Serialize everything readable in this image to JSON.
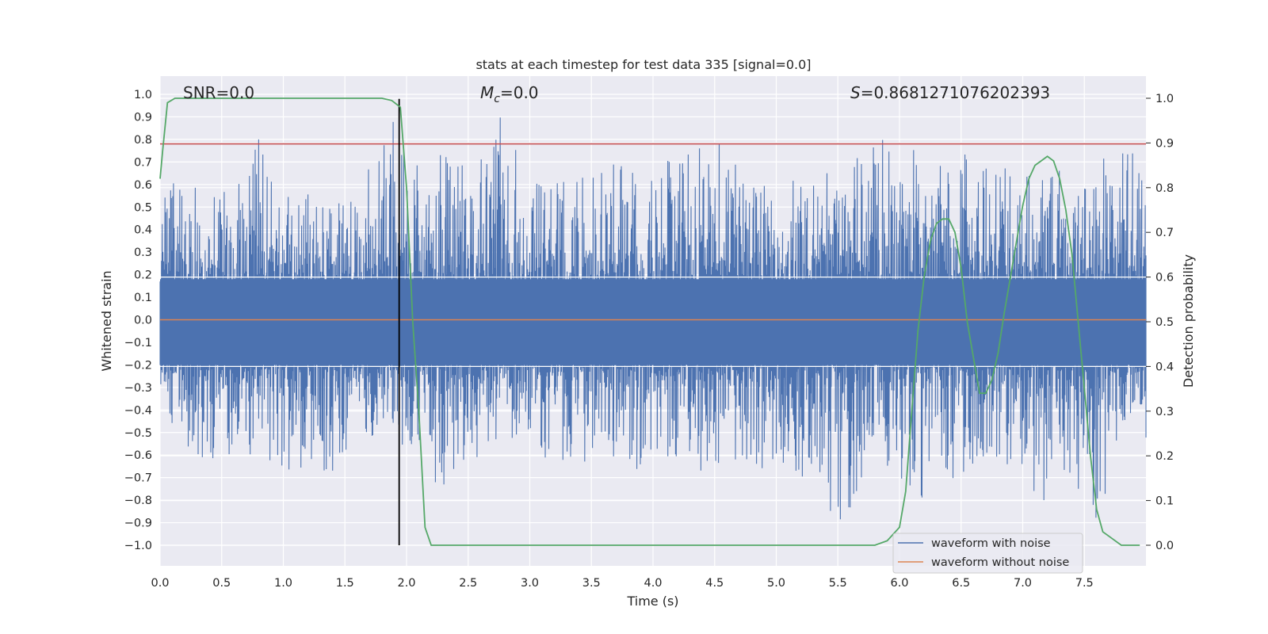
{
  "chart_data": {
    "type": "line",
    "title": "stats at each timestep for test data 335 [signal=0.0]",
    "xlabel": "Time (s)",
    "ylabel_left": "Whitened strain",
    "ylabel_right": "Detection probability",
    "xlim": [
      0.0,
      8.0
    ],
    "ylim_left": [
      -1.0,
      1.0
    ],
    "ylim_right": [
      0.0,
      1.0
    ],
    "x_ticks": [
      "0.0",
      "0.5",
      "1.0",
      "1.5",
      "2.0",
      "2.5",
      "3.0",
      "3.5",
      "4.0",
      "4.5",
      "5.0",
      "5.5",
      "6.0",
      "6.5",
      "7.0",
      "7.5"
    ],
    "y_left_ticks": [
      "1.0",
      "0.9",
      "0.8",
      "0.7",
      "0.6",
      "0.5",
      "0.4",
      "0.3",
      "0.2",
      "0.1",
      "0.0",
      "−0.1",
      "−0.2",
      "−0.3",
      "−0.4",
      "−0.5",
      "−0.6",
      "−0.7",
      "−0.8",
      "−0.9",
      "−1.0"
    ],
    "y_right_ticks": [
      "1.0",
      "0.9",
      "0.8",
      "0.7",
      "0.6",
      "0.5",
      "0.4",
      "0.3",
      "0.2",
      "0.1",
      "0.0"
    ],
    "grid": true,
    "legend_position": "bottom-right",
    "annotations": {
      "snr": "SNR=0.0",
      "mc_symbol": "M",
      "mc_sub": "c",
      "mc_value": "=0.0",
      "s_symbol": "S",
      "s_value": "=0.8681271076202393"
    },
    "threshold_left": 0.78,
    "vline_x": 1.94,
    "series": [
      {
        "name": "waveform with noise",
        "color": "#4c72b0",
        "axis": "left",
        "peaks": [
          [
            0.0,
            0.64,
            -0.42
          ],
          [
            0.2,
            0.58,
            -0.55
          ],
          [
            0.4,
            0.6,
            -0.65
          ],
          [
            0.6,
            0.55,
            -0.62
          ],
          [
            0.8,
            0.83,
            -0.6
          ],
          [
            1.0,
            0.58,
            -0.7
          ],
          [
            1.2,
            0.6,
            -0.64
          ],
          [
            1.3,
            0.55,
            -0.76
          ],
          [
            1.5,
            0.55,
            -0.58
          ],
          [
            1.7,
            0.7,
            -0.55
          ],
          [
            1.88,
            0.98,
            -0.45
          ],
          [
            2.0,
            0.72,
            -0.62
          ],
          [
            2.3,
            0.78,
            -0.75
          ],
          [
            2.5,
            0.66,
            -0.62
          ],
          [
            2.8,
            0.97,
            -0.6
          ],
          [
            3.0,
            0.6,
            -0.62
          ],
          [
            3.3,
            0.66,
            -0.64
          ],
          [
            3.6,
            0.7,
            -0.62
          ],
          [
            3.9,
            0.66,
            -0.68
          ],
          [
            4.1,
            0.7,
            -0.62
          ],
          [
            4.4,
            0.78,
            -0.68
          ],
          [
            4.6,
            0.78,
            -0.62
          ],
          [
            4.9,
            0.62,
            -0.66
          ],
          [
            5.2,
            0.66,
            -0.7
          ],
          [
            5.55,
            0.66,
            -0.93
          ],
          [
            5.8,
            0.82,
            -0.64
          ],
          [
            6.0,
            0.78,
            -0.7
          ],
          [
            6.25,
            0.72,
            -0.85
          ],
          [
            6.5,
            0.74,
            -0.68
          ],
          [
            6.8,
            0.68,
            -0.62
          ],
          [
            7.05,
            0.72,
            -0.75
          ],
          [
            7.2,
            0.68,
            -0.82
          ],
          [
            7.4,
            0.74,
            -0.7
          ],
          [
            7.6,
            0.8,
            -1.0
          ],
          [
            7.8,
            0.93,
            -0.62
          ],
          [
            7.95,
            0.64,
            -0.55
          ]
        ]
      },
      {
        "name": "waveform without noise",
        "color": "#dd8452",
        "axis": "left",
        "x": [
          0.0,
          8.0
        ],
        "y": [
          0.0,
          0.0
        ]
      },
      {
        "name": "detection probability",
        "color": "#55a868",
        "axis": "right",
        "x": [
          0.0,
          0.02,
          0.06,
          0.12,
          0.3,
          1.0,
          1.5,
          1.8,
          1.88,
          1.95,
          2.0,
          2.05,
          2.1,
          2.15,
          2.2,
          2.4,
          3.0,
          3.5,
          4.0,
          5.0,
          5.5,
          5.8,
          5.9,
          6.0,
          6.05,
          6.1,
          6.15,
          6.2,
          6.25,
          6.3,
          6.35,
          6.4,
          6.45,
          6.5,
          6.55,
          6.6,
          6.65,
          6.7,
          6.75,
          6.8,
          6.85,
          6.9,
          6.95,
          7.0,
          7.05,
          7.1,
          7.15,
          7.2,
          7.25,
          7.3,
          7.35,
          7.4,
          7.45,
          7.5,
          7.55,
          7.6,
          7.65,
          7.7,
          7.8,
          7.95
        ],
        "y": [
          0.82,
          0.88,
          0.99,
          1.0,
          1.0,
          1.0,
          1.0,
          1.0,
          0.995,
          0.98,
          0.8,
          0.5,
          0.3,
          0.04,
          0.0,
          0.0,
          0.0,
          0.0,
          0.0,
          0.0,
          0.0,
          0.0,
          0.01,
          0.04,
          0.12,
          0.3,
          0.48,
          0.6,
          0.68,
          0.72,
          0.73,
          0.73,
          0.7,
          0.62,
          0.5,
          0.42,
          0.34,
          0.34,
          0.37,
          0.43,
          0.52,
          0.6,
          0.68,
          0.76,
          0.82,
          0.85,
          0.86,
          0.87,
          0.86,
          0.82,
          0.75,
          0.65,
          0.5,
          0.35,
          0.2,
          0.08,
          0.03,
          0.02,
          0.0,
          0.0
        ]
      }
    ]
  }
}
